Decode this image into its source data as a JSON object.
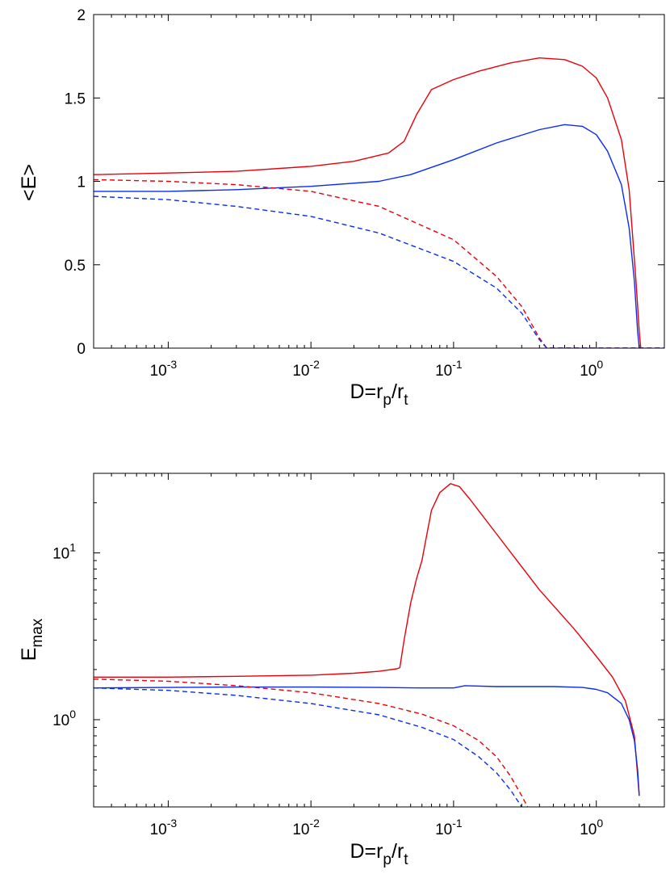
{
  "chart_data": [
    {
      "type": "line",
      "xscale": "log",
      "yscale": "linear",
      "xlim": [
        0.0003,
        3.0
      ],
      "ylim": [
        0,
        2
      ],
      "xlabel": {
        "main": "D=r",
        "sub1": "p",
        "mid": "/r",
        "sub2": "t"
      },
      "ylabel": {
        "main": "<E>",
        "sub": ""
      },
      "xticks": [
        {
          "value": 0.001,
          "base": "10",
          "exp": "-3"
        },
        {
          "value": 0.01,
          "base": "10",
          "exp": "-2"
        },
        {
          "value": 0.1,
          "base": "10",
          "exp": "-1"
        },
        {
          "value": 1,
          "base": "10",
          "exp": "0"
        }
      ],
      "yticks": [
        {
          "value": 0,
          "label": "0"
        },
        {
          "value": 0.5,
          "label": "0.5"
        },
        {
          "value": 1,
          "label": "1"
        },
        {
          "value": 1.5,
          "label": "1.5"
        },
        {
          "value": 2,
          "label": "2"
        }
      ],
      "series": [
        {
          "name": "red-solid",
          "color": "#e8000b",
          "dash": "solid",
          "x": [
            0.0003,
            0.001,
            0.003,
            0.01,
            0.02,
            0.035,
            0.045,
            0.055,
            0.07,
            0.1,
            0.15,
            0.25,
            0.4,
            0.6,
            0.8,
            1.0,
            1.2,
            1.5,
            1.7,
            1.9,
            2.0,
            2.05
          ],
          "y": [
            1.04,
            1.05,
            1.06,
            1.09,
            1.12,
            1.17,
            1.24,
            1.4,
            1.55,
            1.61,
            1.66,
            1.71,
            1.74,
            1.73,
            1.69,
            1.62,
            1.5,
            1.25,
            0.95,
            0.4,
            0.1,
            0.0
          ]
        },
        {
          "name": "blue-solid",
          "color": "#0a2cf0",
          "dash": "solid",
          "x": [
            0.0003,
            0.001,
            0.003,
            0.01,
            0.03,
            0.05,
            0.1,
            0.2,
            0.4,
            0.6,
            0.8,
            1.0,
            1.2,
            1.5,
            1.7,
            1.85,
            1.95,
            2.0
          ],
          "y": [
            0.94,
            0.94,
            0.95,
            0.97,
            1.0,
            1.04,
            1.13,
            1.23,
            1.31,
            1.34,
            1.33,
            1.28,
            1.18,
            0.98,
            0.72,
            0.4,
            0.1,
            0.0
          ]
        },
        {
          "name": "red-dashed",
          "color": "#e8000b",
          "dash": "dashed",
          "x": [
            0.0003,
            0.001,
            0.003,
            0.01,
            0.03,
            0.1,
            0.2,
            0.3,
            0.4,
            0.45,
            3.0
          ],
          "y": [
            1.01,
            1.0,
            0.98,
            0.94,
            0.85,
            0.65,
            0.43,
            0.25,
            0.06,
            0.0,
            0.0
          ]
        },
        {
          "name": "blue-dashed",
          "color": "#0a2cf0",
          "dash": "dashed",
          "x": [
            0.0003,
            0.001,
            0.003,
            0.01,
            0.03,
            0.1,
            0.2,
            0.3,
            0.4,
            0.45,
            3.0
          ],
          "y": [
            0.91,
            0.89,
            0.85,
            0.79,
            0.69,
            0.52,
            0.36,
            0.21,
            0.05,
            0.0,
            0.0
          ]
        }
      ]
    },
    {
      "type": "line",
      "xscale": "log",
      "yscale": "log",
      "xlim": [
        0.0003,
        3.0
      ],
      "ylim": [
        0.3,
        30
      ],
      "xlabel": {
        "main": "D=r",
        "sub1": "p",
        "mid": "/r",
        "sub2": "t"
      },
      "ylabel": {
        "main": "E",
        "sub": "max"
      },
      "xticks": [
        {
          "value": 0.001,
          "base": "10",
          "exp": "-3"
        },
        {
          "value": 0.01,
          "base": "10",
          "exp": "-2"
        },
        {
          "value": 0.1,
          "base": "10",
          "exp": "-1"
        },
        {
          "value": 1,
          "base": "10",
          "exp": "0"
        }
      ],
      "yticks": [
        {
          "value": 1,
          "base": "10",
          "exp": "0"
        },
        {
          "value": 10,
          "base": "10",
          "exp": "1"
        }
      ],
      "series": [
        {
          "name": "red-solid",
          "color": "#e8000b",
          "dash": "solid",
          "x": [
            0.0003,
            0.001,
            0.003,
            0.01,
            0.02,
            0.03,
            0.04,
            0.042,
            0.045,
            0.05,
            0.055,
            0.06,
            0.065,
            0.07,
            0.08,
            0.095,
            0.11,
            0.13,
            0.2,
            0.4,
            0.7,
            1.0,
            1.3,
            1.6,
            1.85,
            2.0
          ],
          "y": [
            1.8,
            1.8,
            1.82,
            1.85,
            1.9,
            1.95,
            2.02,
            2.05,
            3.0,
            5.0,
            7.0,
            9.0,
            13.0,
            18.0,
            23.0,
            26.0,
            25.0,
            21.0,
            13.0,
            6.0,
            3.5,
            2.4,
            1.8,
            1.3,
            0.8,
            0.35
          ]
        },
        {
          "name": "blue-solid",
          "color": "#0a2cf0",
          "dash": "solid",
          "x": [
            0.0003,
            0.001,
            0.003,
            0.01,
            0.03,
            0.06,
            0.1,
            0.12,
            0.2,
            0.5,
            0.8,
            1.0,
            1.2,
            1.5,
            1.7,
            1.85,
            1.95,
            2.0
          ],
          "y": [
            1.55,
            1.56,
            1.57,
            1.57,
            1.56,
            1.55,
            1.55,
            1.6,
            1.58,
            1.58,
            1.56,
            1.52,
            1.45,
            1.25,
            1.0,
            0.75,
            0.5,
            0.35
          ]
        },
        {
          "name": "red-dashed",
          "color": "#e8000b",
          "dash": "dashed",
          "x": [
            0.0003,
            0.001,
            0.003,
            0.01,
            0.03,
            0.06,
            0.1,
            0.15,
            0.2,
            0.25,
            0.3,
            0.33
          ],
          "y": [
            1.75,
            1.7,
            1.6,
            1.45,
            1.25,
            1.08,
            0.92,
            0.75,
            0.6,
            0.46,
            0.35,
            0.3
          ]
        },
        {
          "name": "blue-dashed",
          "color": "#0a2cf0",
          "dash": "dashed",
          "x": [
            0.0003,
            0.001,
            0.003,
            0.01,
            0.03,
            0.06,
            0.1,
            0.15,
            0.2,
            0.25,
            0.3
          ],
          "y": [
            1.55,
            1.5,
            1.4,
            1.25,
            1.07,
            0.9,
            0.76,
            0.6,
            0.48,
            0.38,
            0.3
          ]
        }
      ]
    }
  ]
}
